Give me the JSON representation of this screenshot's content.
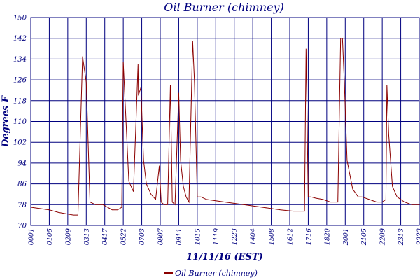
{
  "chart_data": {
    "type": "line",
    "title": "Oil Burner (chimney)",
    "xlabel": "11/11/16 (EST)",
    "ylabel": "Degrees F",
    "ylim": [
      70,
      150
    ],
    "yticks": [
      70,
      78,
      86,
      94,
      102,
      110,
      118,
      126,
      134,
      142,
      150
    ],
    "xticks": [
      "0001",
      "0105",
      "0209",
      "0313",
      "0417",
      "0522",
      "0703",
      "0807",
      "0911",
      "1015",
      "1119",
      "1223",
      "1404",
      "1508",
      "1612",
      "1716",
      "1820",
      "2001",
      "2105",
      "2209",
      "2313",
      "2323"
    ],
    "grid": true,
    "legend_position": "bottom-center",
    "colors": {
      "series": "#8b0000",
      "grid": "#00007f",
      "text": "#00007f"
    },
    "series": [
      {
        "name": "Oil Burner (chimney)",
        "x": [
          0,
          0.5,
          1.0,
          1.5,
          1.9,
          2.3,
          2.55,
          2.8,
          3.0,
          3.2,
          3.5,
          3.9,
          4.4,
          4.7,
          4.92,
          5.0,
          5.15,
          5.3,
          5.55,
          5.8,
          5.82,
          5.95,
          6.1,
          6.25,
          6.5,
          6.75,
          6.95,
          7.05,
          7.2,
          7.4,
          7.55,
          7.65,
          7.8,
          8.0,
          8.1,
          8.25,
          8.4,
          8.55,
          8.75,
          8.85,
          9.0,
          9.1,
          9.2,
          9.5,
          10.5,
          11.5,
          12.5,
          13.5,
          14.2,
          14.8,
          14.88,
          15.0,
          15.15,
          15.4,
          15.8,
          16.2,
          16.6,
          16.75,
          16.85,
          16.95,
          17.1,
          17.4,
          17.7,
          17.78,
          17.9,
          18.3,
          18.7,
          19.0,
          19.2,
          19.25,
          19.35,
          19.55,
          19.8,
          20.2,
          20.6,
          21.0,
          21.5,
          21.65
        ],
        "values": [
          77,
          76.5,
          76,
          75,
          74.5,
          74,
          74,
          135,
          125,
          79,
          78,
          78,
          76,
          76,
          77,
          133,
          110,
          87,
          83,
          132,
          120,
          123,
          95,
          86,
          82,
          80,
          93,
          79,
          78,
          78,
          124,
          79,
          78,
          121,
          95,
          85,
          81,
          79,
          141,
          125,
          81,
          81,
          81,
          80,
          79,
          78,
          77,
          76,
          75.5,
          75.5,
          138,
          81,
          81,
          80.5,
          80,
          79,
          79,
          142,
          142,
          125,
          95,
          84,
          81,
          81,
          81,
          80,
          79,
          79,
          80,
          124,
          105,
          85,
          81,
          79,
          78,
          78,
          78,
          78
        ]
      }
    ]
  }
}
